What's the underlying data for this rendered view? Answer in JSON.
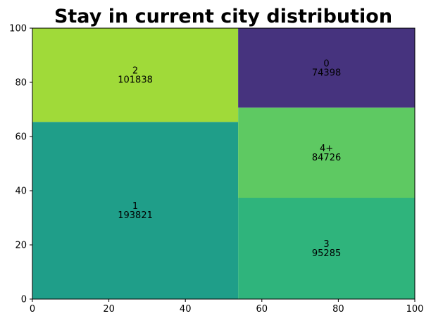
{
  "chart_data": {
    "type": "treemap",
    "title": "Stay in current city distribution",
    "xlabel": "",
    "ylabel": "",
    "xlim": [
      0,
      100
    ],
    "ylim": [
      0,
      100
    ],
    "xticks": [
      "0",
      "20",
      "40",
      "60",
      "80",
      "100"
    ],
    "yticks": [
      "0",
      "20",
      "40",
      "60",
      "80",
      "100"
    ],
    "grid": false,
    "cells": [
      {
        "label": "1",
        "value": "193821",
        "x0": 0,
        "x1": 53.8,
        "y0": 0,
        "y1": 65.4,
        "color": "#1f9e89"
      },
      {
        "label": "2",
        "value": "101838",
        "x0": 0,
        "x1": 53.8,
        "y0": 65.4,
        "y1": 100,
        "color": "#a0da39"
      },
      {
        "label": "3",
        "value": "95285",
        "x0": 53.8,
        "x1": 100,
        "y0": 0,
        "y1": 37.4,
        "color": "#2fb47c"
      },
      {
        "label": "4+",
        "value": "84726",
        "x0": 53.8,
        "x1": 100,
        "y0": 37.4,
        "y1": 70.7,
        "color": "#5ec962"
      },
      {
        "label": "0",
        "value": "74398",
        "x0": 53.8,
        "x1": 100,
        "y0": 70.7,
        "y1": 100,
        "color": "#46337e"
      }
    ]
  }
}
